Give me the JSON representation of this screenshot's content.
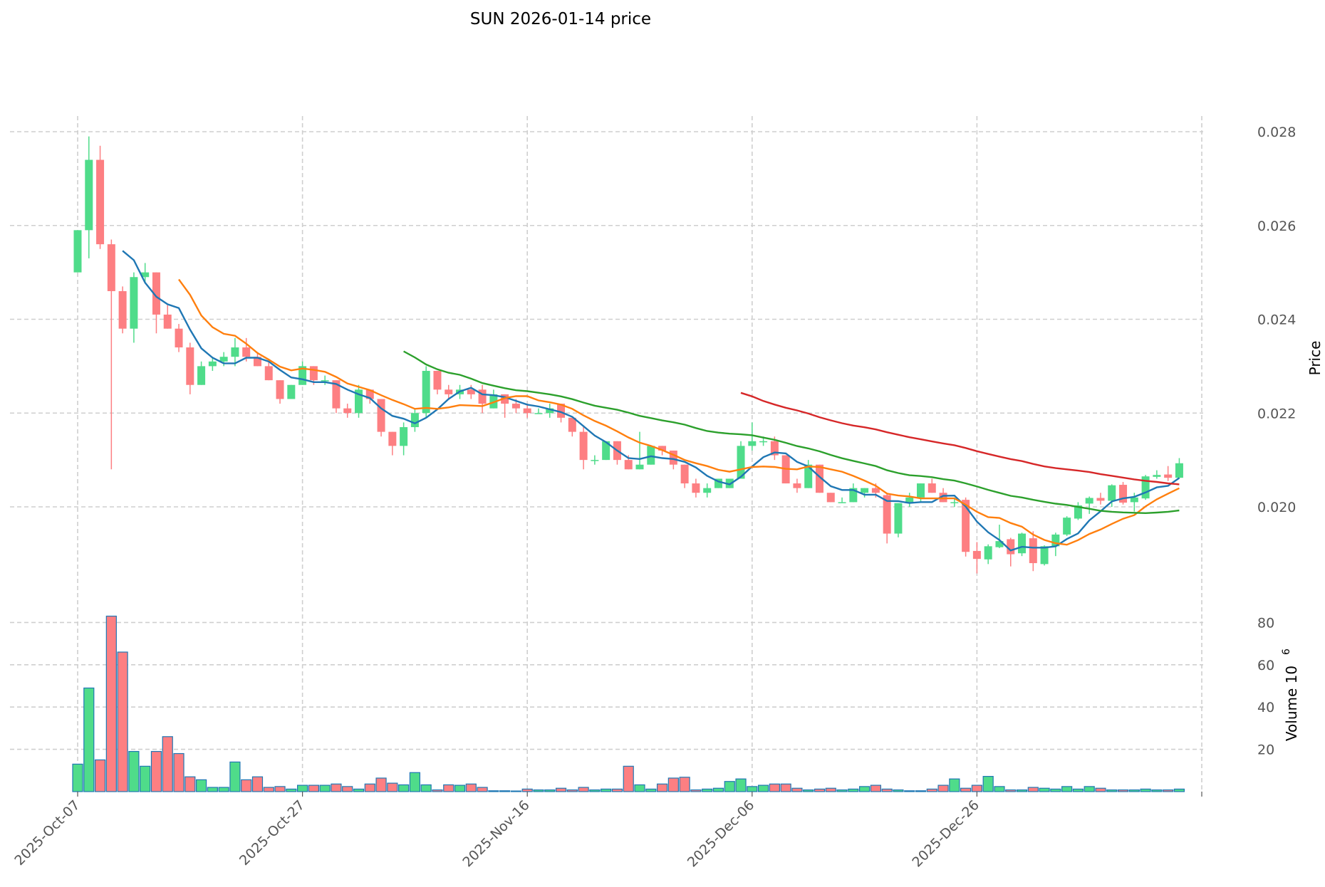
{
  "chart_data": {
    "type": "candlestick",
    "title": "SUN  2026-01-14  price",
    "ylabel": "Price",
    "volume_label": "Volume  10",
    "volume_exponent": "6",
    "ylim": [
      0.0185,
      0.0282
    ],
    "volume_ylim": [
      0,
      86
    ],
    "price_ticks": [
      "0.020",
      "0.022",
      "0.024",
      "0.026",
      "0.028"
    ],
    "price_tick_values": [
      0.02,
      0.022,
      0.024,
      0.026,
      0.028
    ],
    "volume_ticks": [
      "20",
      "40",
      "60",
      "80"
    ],
    "volume_tick_values": [
      20,
      40,
      60,
      80
    ],
    "x_tick_labels": [
      "2025-Oct-07",
      "2025-Oct-27",
      "2025-Nov-16",
      "2025-Dec-06",
      "2025-Dec-26"
    ],
    "x_tick_indices": [
      0,
      20,
      40,
      60,
      80
    ],
    "grid": true,
    "start_date": "2025-10-07",
    "moving_averages": [
      {
        "period": 5,
        "color": "#1f77b4"
      },
      {
        "period": 10,
        "color": "#ff7f0e"
      },
      {
        "period": 30,
        "color": "#2ca02c"
      },
      {
        "period": 60,
        "color": "#d62728"
      }
    ],
    "colors": {
      "up": "#4fdc8a",
      "down": "#fd7f82",
      "volume_edge": "#1f77b4"
    },
    "ohlc": [
      [
        0.025,
        0.0259,
        0.025,
        0.0259
      ],
      [
        0.0259,
        0.0279,
        0.0253,
        0.0274
      ],
      [
        0.0274,
        0.0277,
        0.0255,
        0.0256
      ],
      [
        0.0256,
        0.0257,
        0.0208,
        0.0246
      ],
      [
        0.0246,
        0.0247,
        0.0237,
        0.0238
      ],
      [
        0.0238,
        0.025,
        0.0235,
        0.0249
      ],
      [
        0.0249,
        0.0252,
        0.0248,
        0.025
      ],
      [
        0.025,
        0.025,
        0.0237,
        0.0241
      ],
      [
        0.0241,
        0.0243,
        0.0238,
        0.0238
      ],
      [
        0.0238,
        0.0239,
        0.0233,
        0.0234
      ],
      [
        0.0234,
        0.0235,
        0.0224,
        0.0226
      ],
      [
        0.0226,
        0.0231,
        0.0226,
        0.023
      ],
      [
        0.023,
        0.0232,
        0.0229,
        0.0231
      ],
      [
        0.0231,
        0.0233,
        0.023,
        0.0232
      ],
      [
        0.0232,
        0.0236,
        0.023,
        0.0234
      ],
      [
        0.0234,
        0.0236,
        0.0231,
        0.0232
      ],
      [
        0.0232,
        0.0233,
        0.023,
        0.023
      ],
      [
        0.023,
        0.0231,
        0.0227,
        0.0227
      ],
      [
        0.0227,
        0.0227,
        0.0222,
        0.0223
      ],
      [
        0.0223,
        0.0226,
        0.0223,
        0.0226
      ],
      [
        0.0226,
        0.0231,
        0.0226,
        0.023
      ],
      [
        0.023,
        0.023,
        0.0226,
        0.0227
      ],
      [
        0.0227,
        0.0228,
        0.0226,
        0.0227
      ],
      [
        0.0227,
        0.0227,
        0.022,
        0.0221
      ],
      [
        0.0221,
        0.0222,
        0.0219,
        0.022
      ],
      [
        0.022,
        0.0226,
        0.0219,
        0.0225
      ],
      [
        0.0225,
        0.0225,
        0.0222,
        0.0223
      ],
      [
        0.0223,
        0.0223,
        0.0215,
        0.0216
      ],
      [
        0.0216,
        0.0216,
        0.0211,
        0.0213
      ],
      [
        0.0213,
        0.0218,
        0.0211,
        0.0217
      ],
      [
        0.0217,
        0.0221,
        0.0216,
        0.022
      ],
      [
        0.022,
        0.023,
        0.0219,
        0.0229
      ],
      [
        0.0229,
        0.0229,
        0.0224,
        0.0225
      ],
      [
        0.0225,
        0.0226,
        0.0223,
        0.0224
      ],
      [
        0.0224,
        0.0226,
        0.0223,
        0.0225
      ],
      [
        0.0225,
        0.0226,
        0.0223,
        0.0224
      ],
      [
        0.0225,
        0.0226,
        0.022,
        0.0222
      ],
      [
        0.0221,
        0.0225,
        0.0221,
        0.0224
      ],
      [
        0.0224,
        0.0224,
        0.0219,
        0.0222
      ],
      [
        0.0222,
        0.0223,
        0.022,
        0.0221
      ],
      [
        0.0221,
        0.0222,
        0.0219,
        0.022
      ],
      [
        0.022,
        0.0221,
        0.022,
        0.022
      ],
      [
        0.022,
        0.0222,
        0.0219,
        0.0221
      ],
      [
        0.0222,
        0.0222,
        0.0218,
        0.0219
      ],
      [
        0.0219,
        0.0219,
        0.0215,
        0.0216
      ],
      [
        0.0216,
        0.0217,
        0.0208,
        0.021
      ],
      [
        0.021,
        0.0211,
        0.0209,
        0.021
      ],
      [
        0.021,
        0.0214,
        0.021,
        0.0214
      ],
      [
        0.0214,
        0.0214,
        0.0209,
        0.021
      ],
      [
        0.021,
        0.0211,
        0.0208,
        0.0208
      ],
      [
        0.0208,
        0.0216,
        0.0208,
        0.0209
      ],
      [
        0.0209,
        0.0213,
        0.0209,
        0.0213
      ],
      [
        0.0213,
        0.0213,
        0.0211,
        0.0212
      ],
      [
        0.0212,
        0.0212,
        0.0208,
        0.0209
      ],
      [
        0.0209,
        0.0209,
        0.0204,
        0.0205
      ],
      [
        0.0205,
        0.0206,
        0.0202,
        0.0203
      ],
      [
        0.0203,
        0.0205,
        0.0202,
        0.0204
      ],
      [
        0.0204,
        0.0206,
        0.0204,
        0.0206
      ],
      [
        0.0204,
        0.0206,
        0.0204,
        0.0206
      ],
      [
        0.0206,
        0.0214,
        0.0206,
        0.0213
      ],
      [
        0.0213,
        0.0218,
        0.0212,
        0.0214
      ],
      [
        0.0214,
        0.0215,
        0.0213,
        0.0214
      ],
      [
        0.0214,
        0.0215,
        0.021,
        0.0211
      ],
      [
        0.0211,
        0.0211,
        0.0205,
        0.0205
      ],
      [
        0.0205,
        0.0206,
        0.0203,
        0.0204
      ],
      [
        0.0204,
        0.021,
        0.0204,
        0.0209
      ],
      [
        0.0209,
        0.0209,
        0.0203,
        0.0203
      ],
      [
        0.0203,
        0.0203,
        0.0201,
        0.0201
      ],
      [
        0.0201,
        0.0202,
        0.0201,
        0.0201
      ],
      [
        0.0201,
        0.0205,
        0.0201,
        0.0204
      ],
      [
        0.0203,
        0.0204,
        0.0202,
        0.0204
      ],
      [
        0.0204,
        0.0205,
        0.0202,
        0.0203
      ],
      [
        0.02025,
        0.0203,
        0.01922,
        0.01943
      ],
      [
        0.01943,
        0.02008,
        0.01935,
        0.02008
      ],
      [
        0.0201,
        0.0203,
        0.02,
        0.0202
      ],
      [
        0.0202,
        0.0205,
        0.0201,
        0.0205
      ],
      [
        0.0205,
        0.0206,
        0.0203,
        0.0203
      ],
      [
        0.0203,
        0.0204,
        0.0201,
        0.0201
      ],
      [
        0.0201,
        0.0202,
        0.02,
        0.0201
      ],
      [
        0.02015,
        0.0202,
        0.01894,
        0.01904
      ],
      [
        0.01906,
        0.01925,
        0.01858,
        0.01889
      ],
      [
        0.01888,
        0.0192,
        0.01878,
        0.01916
      ],
      [
        0.01914,
        0.01962,
        0.01912,
        0.01927
      ],
      [
        0.01931,
        0.01934,
        0.01873,
        0.01899
      ],
      [
        0.01901,
        0.01945,
        0.01895,
        0.01943
      ],
      [
        0.01933,
        0.01948,
        0.01863,
        0.0188
      ],
      [
        0.01878,
        0.01918,
        0.01875,
        0.01916
      ],
      [
        0.01916,
        0.01945,
        0.01895,
        0.01941
      ],
      [
        0.01941,
        0.0198,
        0.01938,
        0.01977
      ],
      [
        0.01975,
        0.0201,
        0.01972,
        0.02003
      ],
      [
        0.02007,
        0.02022,
        0.01985,
        0.02019
      ],
      [
        0.02019,
        0.0203,
        0.02005,
        0.02013
      ],
      [
        0.02013,
        0.02048,
        0.02,
        0.02046
      ],
      [
        0.02047,
        0.02053,
        0.02005,
        0.02009
      ],
      [
        0.0201,
        0.0203,
        0.0199,
        0.0202
      ],
      [
        0.02018,
        0.02068,
        0.02015,
        0.02065
      ],
      [
        0.02064,
        0.02078,
        0.0206,
        0.02068
      ],
      [
        0.02069,
        0.02087,
        0.02055,
        0.02062
      ],
      [
        0.02062,
        0.02104,
        0.0206,
        0.02093
      ]
    ],
    "volume": [
      13,
      49,
      15,
      83,
      66,
      19,
      12,
      19,
      26,
      18,
      7,
      5.6,
      2,
      2,
      14,
      5.6,
      7,
      2,
      2.4,
      1.2,
      3,
      3,
      3,
      3.6,
      2.4,
      1.2,
      3.6,
      6.4,
      4,
      3.2,
      9,
      3.2,
      0.8,
      3.2,
      3,
      3.6,
      2,
      0.4,
      0.4,
      0.3,
      1.2,
      0.8,
      0.8,
      1.6,
      0.8,
      2,
      0.8,
      1.2,
      1.2,
      12,
      3.2,
      1.2,
      3.6,
      6.4,
      6.8,
      0.8,
      1.2,
      1.6,
      4.8,
      6,
      2.4,
      3,
      3.6,
      3.6,
      1.6,
      0.8,
      1.2,
      1.6,
      0.8,
      1.2,
      2.4,
      3,
      1.2,
      0.8,
      0.4,
      0.4,
      1.2,
      3,
      6,
      1.6,
      3,
      7.2,
      2.4,
      0.8,
      0.8,
      2,
      1.6,
      1.2,
      2.4,
      1.2,
      2.4,
      1.6,
      0.8,
      0.8,
      0.8,
      1.2,
      0.8,
      0.8,
      1.2
    ]
  }
}
